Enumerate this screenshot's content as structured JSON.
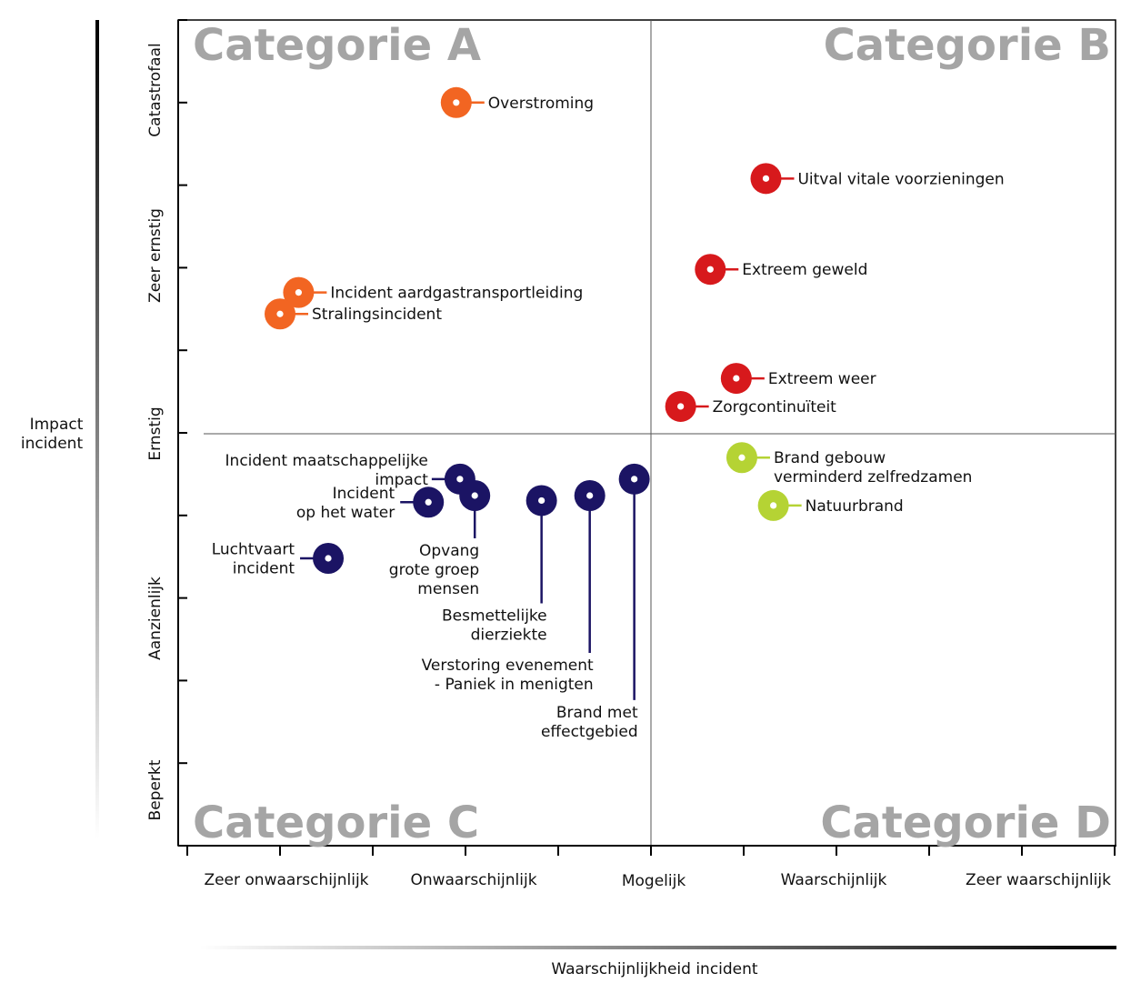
{
  "chart_data": {
    "type": "scatter",
    "title": "",
    "xlabel": "Waarschijnlijkheid incident",
    "ylabel": [
      "Impact",
      "incident"
    ],
    "x_categories": [
      "Zeer onwaarschijnlijk",
      "Onwaarschijnlijk",
      "Mogelijk",
      "Waarschijnlijk",
      "Zeer waarschijnlijk"
    ],
    "y_categories": [
      "Beperkt",
      "Aanzienlijk",
      "Ernstig",
      "Zeer ernstig",
      "Catastrofaal"
    ],
    "xlim": [
      0,
      5
    ],
    "ylim": [
      0,
      5
    ],
    "quadrants": {
      "top_left": "Categorie A",
      "top_right": "Categorie B",
      "bottom_left": "Categorie C",
      "bottom_right": "Categorie D"
    },
    "divider": {
      "x": 2.5,
      "y": 2.5
    },
    "colors": {
      "orange": "#f26522",
      "red": "#d7191c",
      "green": "#b5d334",
      "navy": "#1b1464",
      "quadrant_text": "#a5a5a5"
    },
    "points": [
      {
        "name": "Overstroming",
        "lines": [
          "Overstroming"
        ],
        "x": 1.45,
        "y": 4.5,
        "color": "orange"
      },
      {
        "name": "Incident aardgastransportleiding",
        "lines": [
          "Incident aardgastransportleiding"
        ],
        "x": 0.6,
        "y": 3.35,
        "color": "orange"
      },
      {
        "name": "Stralingsincident",
        "lines": [
          "Stralingsincident"
        ],
        "x": 0.5,
        "y": 3.22,
        "color": "orange"
      },
      {
        "name": "Uitval vitale voorzieningen",
        "lines": [
          "Uitval vitale voorzieningen"
        ],
        "x": 3.12,
        "y": 4.04,
        "color": "red"
      },
      {
        "name": "Extreem geweld",
        "lines": [
          "Extreem geweld"
        ],
        "x": 2.82,
        "y": 3.49,
        "color": "red"
      },
      {
        "name": "Extreem weer",
        "lines": [
          "Extreem weer"
        ],
        "x": 2.96,
        "y": 2.83,
        "color": "red"
      },
      {
        "name": "Zorgcontinuïteit",
        "lines": [
          "Zorgcontinuïteit"
        ],
        "x": 2.66,
        "y": 2.66,
        "color": "red"
      },
      {
        "name": "Brand gebouw verminderd zelfredzamen",
        "lines": [
          "Brand gebouw",
          "verminderd zelfredzamen"
        ],
        "x": 2.99,
        "y": 2.35,
        "color": "green"
      },
      {
        "name": "Natuurbrand",
        "lines": [
          "Natuurbrand"
        ],
        "x": 3.16,
        "y": 2.06,
        "color": "green"
      },
      {
        "name": "Luchtvaart incident",
        "lines": [
          "Luchtvaart",
          "incident"
        ],
        "x": 0.76,
        "y": 1.74,
        "color": "navy"
      },
      {
        "name": "Incident op het water",
        "lines": [
          "Incident",
          "op het water"
        ],
        "x": 1.3,
        "y": 2.08,
        "color": "navy"
      },
      {
        "name": "Incident maatschappelijke impact",
        "lines": [
          "Incident maatschappelijke",
          "impact"
        ],
        "x": 1.47,
        "y": 2.22,
        "color": "navy"
      },
      {
        "name": "Opvang grote groep mensen",
        "lines": [
          "Opvang",
          "grote groep",
          "mensen"
        ],
        "x": 1.55,
        "y": 2.12,
        "color": "navy"
      },
      {
        "name": "Besmettelijke dierziekte",
        "lines": [
          "Besmettelijke",
          "dierziekte"
        ],
        "x": 1.91,
        "y": 2.09,
        "color": "navy"
      },
      {
        "name": "Verstoring evenement - Paniek in menigten",
        "lines": [
          "Verstoring evenement",
          "- Paniek in menigten"
        ],
        "x": 2.17,
        "y": 2.12,
        "color": "navy"
      },
      {
        "name": "Brand met effectgebied",
        "lines": [
          "Brand met",
          "effectgebied"
        ],
        "x": 2.41,
        "y": 2.22,
        "color": "navy"
      }
    ]
  }
}
